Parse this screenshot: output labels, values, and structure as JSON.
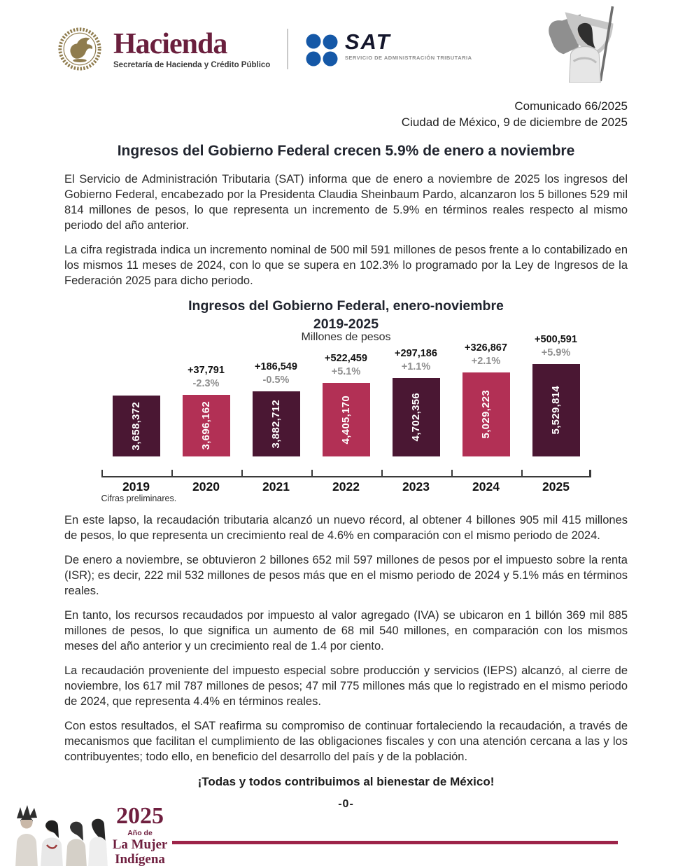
{
  "header": {
    "hacienda": {
      "title": "Hacienda",
      "subtitle": "Secretaría de Hacienda y Crédito Público"
    },
    "sat": {
      "title": "SAT",
      "subtitle": "SERVICIO DE ADMINISTRACIÓN TRIBUTARIA"
    }
  },
  "meta": {
    "comunicado": "Comunicado 66/2025",
    "dateline": "Ciudad de México, 9 de diciembre de 2025"
  },
  "title": "Ingresos del Gobierno Federal crecen 5.9% de enero a noviembre",
  "paragraphs": [
    "El Servicio de Administración Tributaria (SAT) informa que de enero a noviembre de 2025 los ingresos del Gobierno Federal, encabezado por la Presidenta Claudia Sheinbaum Pardo, alcanzaron los 5 billones 529 mil 814 millones de pesos, lo que representa un incremento de 5.9% en términos reales respecto al mismo periodo del año anterior.",
    "La cifra registrada indica un incremento nominal de 500 mil 591 millones de pesos frente a lo contabilizado en los mismos 11 meses de 2024, con lo que se supera en 102.3% lo programado por la Ley de Ingresos de la Federación 2025 para dicho periodo.",
    "En este lapso, la recaudación tributaria alcanzó un nuevo récord, al obtener 4 billones 905 mil 415 millones de pesos, lo que representa un crecimiento real de 4.6% en comparación con el mismo periodo de 2024.",
    "De enero a noviembre, se obtuvieron 2 billones 652 mil 597 millones de pesos por el impuesto sobre la renta (ISR); es decir, 222 mil 532 millones de pesos más que en el mismo periodo de 2024 y 5.1% más en términos reales.",
    "En tanto, los recursos recaudados por impuesto al valor agregado (IVA) se ubicaron en 1 billón 369 mil 885 millones de pesos, lo que significa un aumento de 68 mil 540 millones, en comparación con los mismos meses del año anterior y un crecimiento real de 1.4 por ciento.",
    "La recaudación proveniente del impuesto especial sobre producción y servicios (IEPS) alcanzó, al cierre de noviembre, los 617 mil 787 millones de pesos; 47 mil 775 millones más que lo registrado en el mismo periodo de 2024, que representa 4.4% en términos reales.",
    "Con estos resultados, el SAT reafirma su compromiso de continuar fortaleciendo la recaudación, a través de mecanismos que facilitan el cumplimiento de las obligaciones fiscales y con una atención cercana a las y los contribuyentes; todo ello, en beneficio del desarrollo del país y de la población."
  ],
  "chart_data": {
    "type": "bar",
    "title": "Ingresos del Gobierno Federal, enero-noviembre",
    "title_line2": "2019-2025",
    "subtitle": "Millones de pesos",
    "categories": [
      "2019",
      "2020",
      "2021",
      "2022",
      "2023",
      "2024",
      "2025"
    ],
    "values": [
      3658372,
      3696162,
      3882712,
      4405170,
      4702356,
      5029223,
      5529814
    ],
    "bar_labels": [
      "3,658,372",
      "3,696,162",
      "3,882,712",
      "4,405,170",
      "4,702,356",
      "5,029,223",
      "5,529,814"
    ],
    "annotations": [
      {
        "delta": "",
        "pct": ""
      },
      {
        "delta": "+37,791",
        "pct": "-2.3%"
      },
      {
        "delta": "+186,549",
        "pct": "-0.5%"
      },
      {
        "delta": "+522,459",
        "pct": "+5.1%"
      },
      {
        "delta": "+297,186",
        "pct": "+1.1%"
      },
      {
        "delta": "+326,867",
        "pct": "+2.1%"
      },
      {
        "delta": "+500,591",
        "pct": "+5.9%"
      }
    ],
    "bar_colors": [
      "#4a1733",
      "#b23055",
      "#4a1733",
      "#b23055",
      "#4a1733",
      "#b23055",
      "#4a1733"
    ],
    "ylim": [
      0,
      5529814
    ],
    "grid": false,
    "legend": "none",
    "footnote": "Cifras preliminares."
  },
  "closing": {
    "slogan": "¡Todas y todos contribuimos al bienestar de México!",
    "end_mark": "-0-"
  },
  "footer": {
    "year": "2025",
    "subline": "Año de",
    "line2": "La Mujer",
    "line3": "Indígena"
  },
  "icons": {
    "seal": "mexican-eagle-seal",
    "sat": "sat-four-circles-logo",
    "flag": "woman-with-mexican-flag-illustration",
    "women": "indigenous-women-illustration"
  },
  "colors": {
    "maroon_brand": "#6a1f3d",
    "accent_rule": "#9d2449",
    "bar_dark": "#4a1733",
    "bar_light": "#b23055",
    "sat_blue": "#1558a7"
  }
}
